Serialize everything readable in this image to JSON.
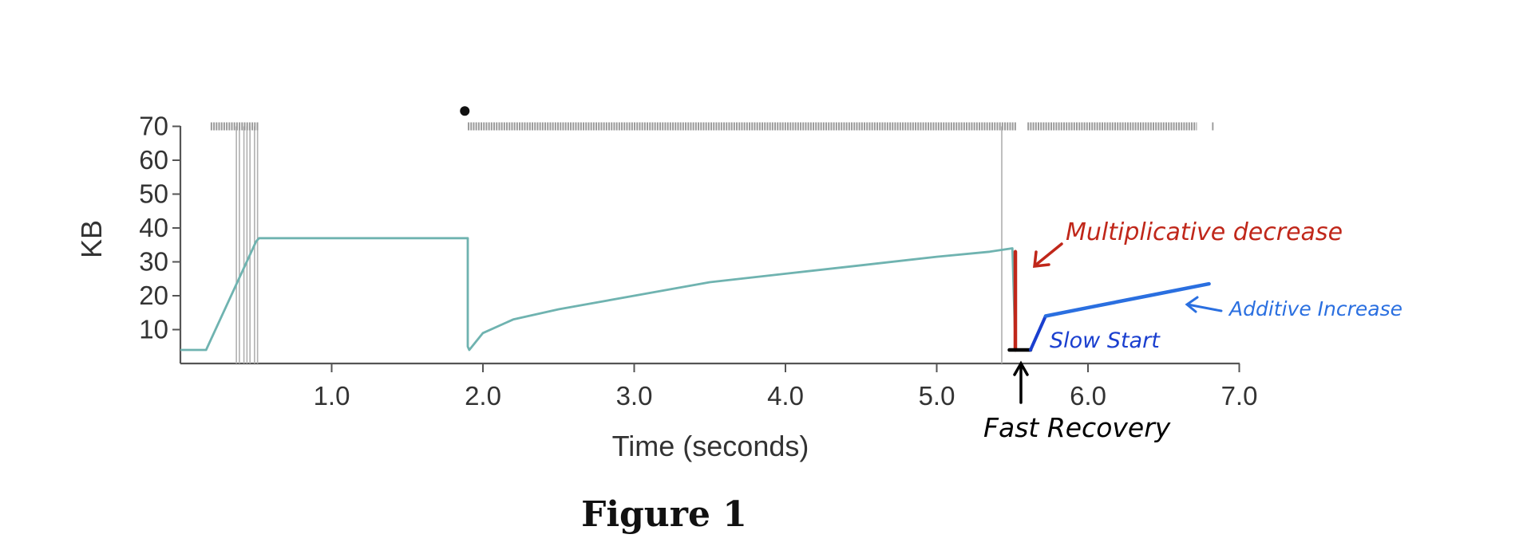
{
  "chart_data": {
    "type": "line",
    "title": "",
    "xlabel": "Time (seconds)",
    "ylabel": "KB",
    "xlim": [
      0,
      7.0
    ],
    "ylim": [
      0,
      70
    ],
    "xticks": [
      "1.0",
      "2.0",
      "3.0",
      "4.0",
      "5.0",
      "6.0",
      "7.0"
    ],
    "xtick_values": [
      1.0,
      2.0,
      3.0,
      4.0,
      5.0,
      6.0,
      7.0
    ],
    "yticks": [
      "10",
      "20",
      "30",
      "40",
      "50",
      "60",
      "70"
    ],
    "ytick_values": [
      10,
      20,
      30,
      40,
      50,
      60,
      70
    ],
    "grid": false,
    "colors": {
      "cwnd": "#6fb3b0",
      "timeout_lines": "#b8b8b8",
      "sends": "#9a9a9a",
      "multiplicative": "#c0271a",
      "additive": "#2a6fe0",
      "slow_start": "#1a3fcf",
      "fast_recovery": "#000000"
    },
    "series": [
      {
        "x": [
          0.0,
          0.17,
          0.5,
          0.52,
          1.9,
          1.9,
          1.91,
          2.0,
          2.2,
          2.5,
          3.0,
          3.5,
          4.0,
          4.5,
          5.0,
          5.35,
          5.5,
          5.52
        ],
        "y": [
          4,
          4,
          36,
          37,
          37,
          5,
          4,
          9,
          13,
          16,
          20,
          24,
          26.5,
          29,
          31.5,
          33,
          34,
          5
        ]
      }
    ],
    "timeout_markers_x": [
      0.37,
      0.39,
      0.42,
      0.44,
      0.46,
      0.49,
      0.51,
      5.43
    ],
    "send_bars": [
      {
        "x0": 0.2,
        "x1": 0.52
      },
      {
        "x0": 1.9,
        "x1": 5.53
      },
      {
        "x0": 5.6,
        "x1": 6.72
      },
      {
        "x0": 6.82,
        "x1": 6.83
      }
    ],
    "dot": {
      "x": 1.88,
      "y": 75
    },
    "annotations": [
      {
        "text": "Multiplicative decrease",
        "color": "multiplicative",
        "points": [
          [
            5.52,
            33
          ],
          [
            5.52,
            4
          ]
        ]
      },
      {
        "text": "Fast Recovery",
        "color": "fast_recovery",
        "points": [
          [
            5.48,
            4
          ],
          [
            5.62,
            4
          ]
        ]
      },
      {
        "text": "Slow Start",
        "color": "slow_start",
        "points": [
          [
            5.62,
            4
          ],
          [
            5.72,
            14
          ]
        ]
      },
      {
        "text": "Additive Increase",
        "color": "additive",
        "points": [
          [
            5.72,
            14
          ],
          [
            6.0,
            16.5
          ],
          [
            6.4,
            20
          ],
          [
            6.8,
            23.5
          ]
        ]
      }
    ],
    "caption": "Figure 1"
  }
}
